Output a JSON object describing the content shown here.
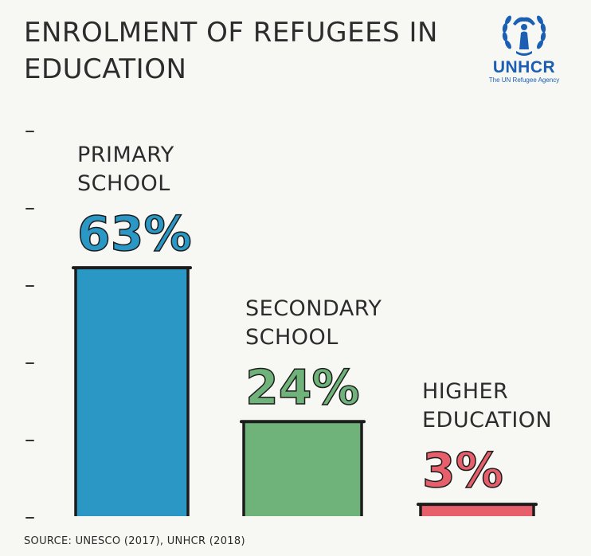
{
  "title": "ENROLMENT OF REFUGEES IN EDUCATION",
  "logo": {
    "name": "UNHCR",
    "tagline": "The UN Refugee Agency"
  },
  "source": "SOURCE: UNESCO (2017), UNHCR (2018)",
  "colors": {
    "primary": "#2a97c4",
    "secondary": "#6fb27a",
    "higher": "#e65f6b",
    "outline": "#1c1c1c",
    "brand": "#1a5fb4"
  },
  "chart_data": {
    "type": "bar",
    "categories": [
      "PRIMARY SCHOOL",
      "SECONDARY SCHOOL",
      "HIGHER EDUCATION"
    ],
    "category_lines": [
      [
        "PRIMARY",
        "SCHOOL"
      ],
      [
        "SECONDARY",
        "SCHOOL"
      ],
      [
        "HIGHER",
        "EDUCATION"
      ]
    ],
    "values": [
      63,
      24,
      3
    ],
    "value_labels": [
      "63%",
      "24%",
      "3%"
    ],
    "unit": "%",
    "ylim": [
      0,
      70
    ],
    "grid": false
  }
}
